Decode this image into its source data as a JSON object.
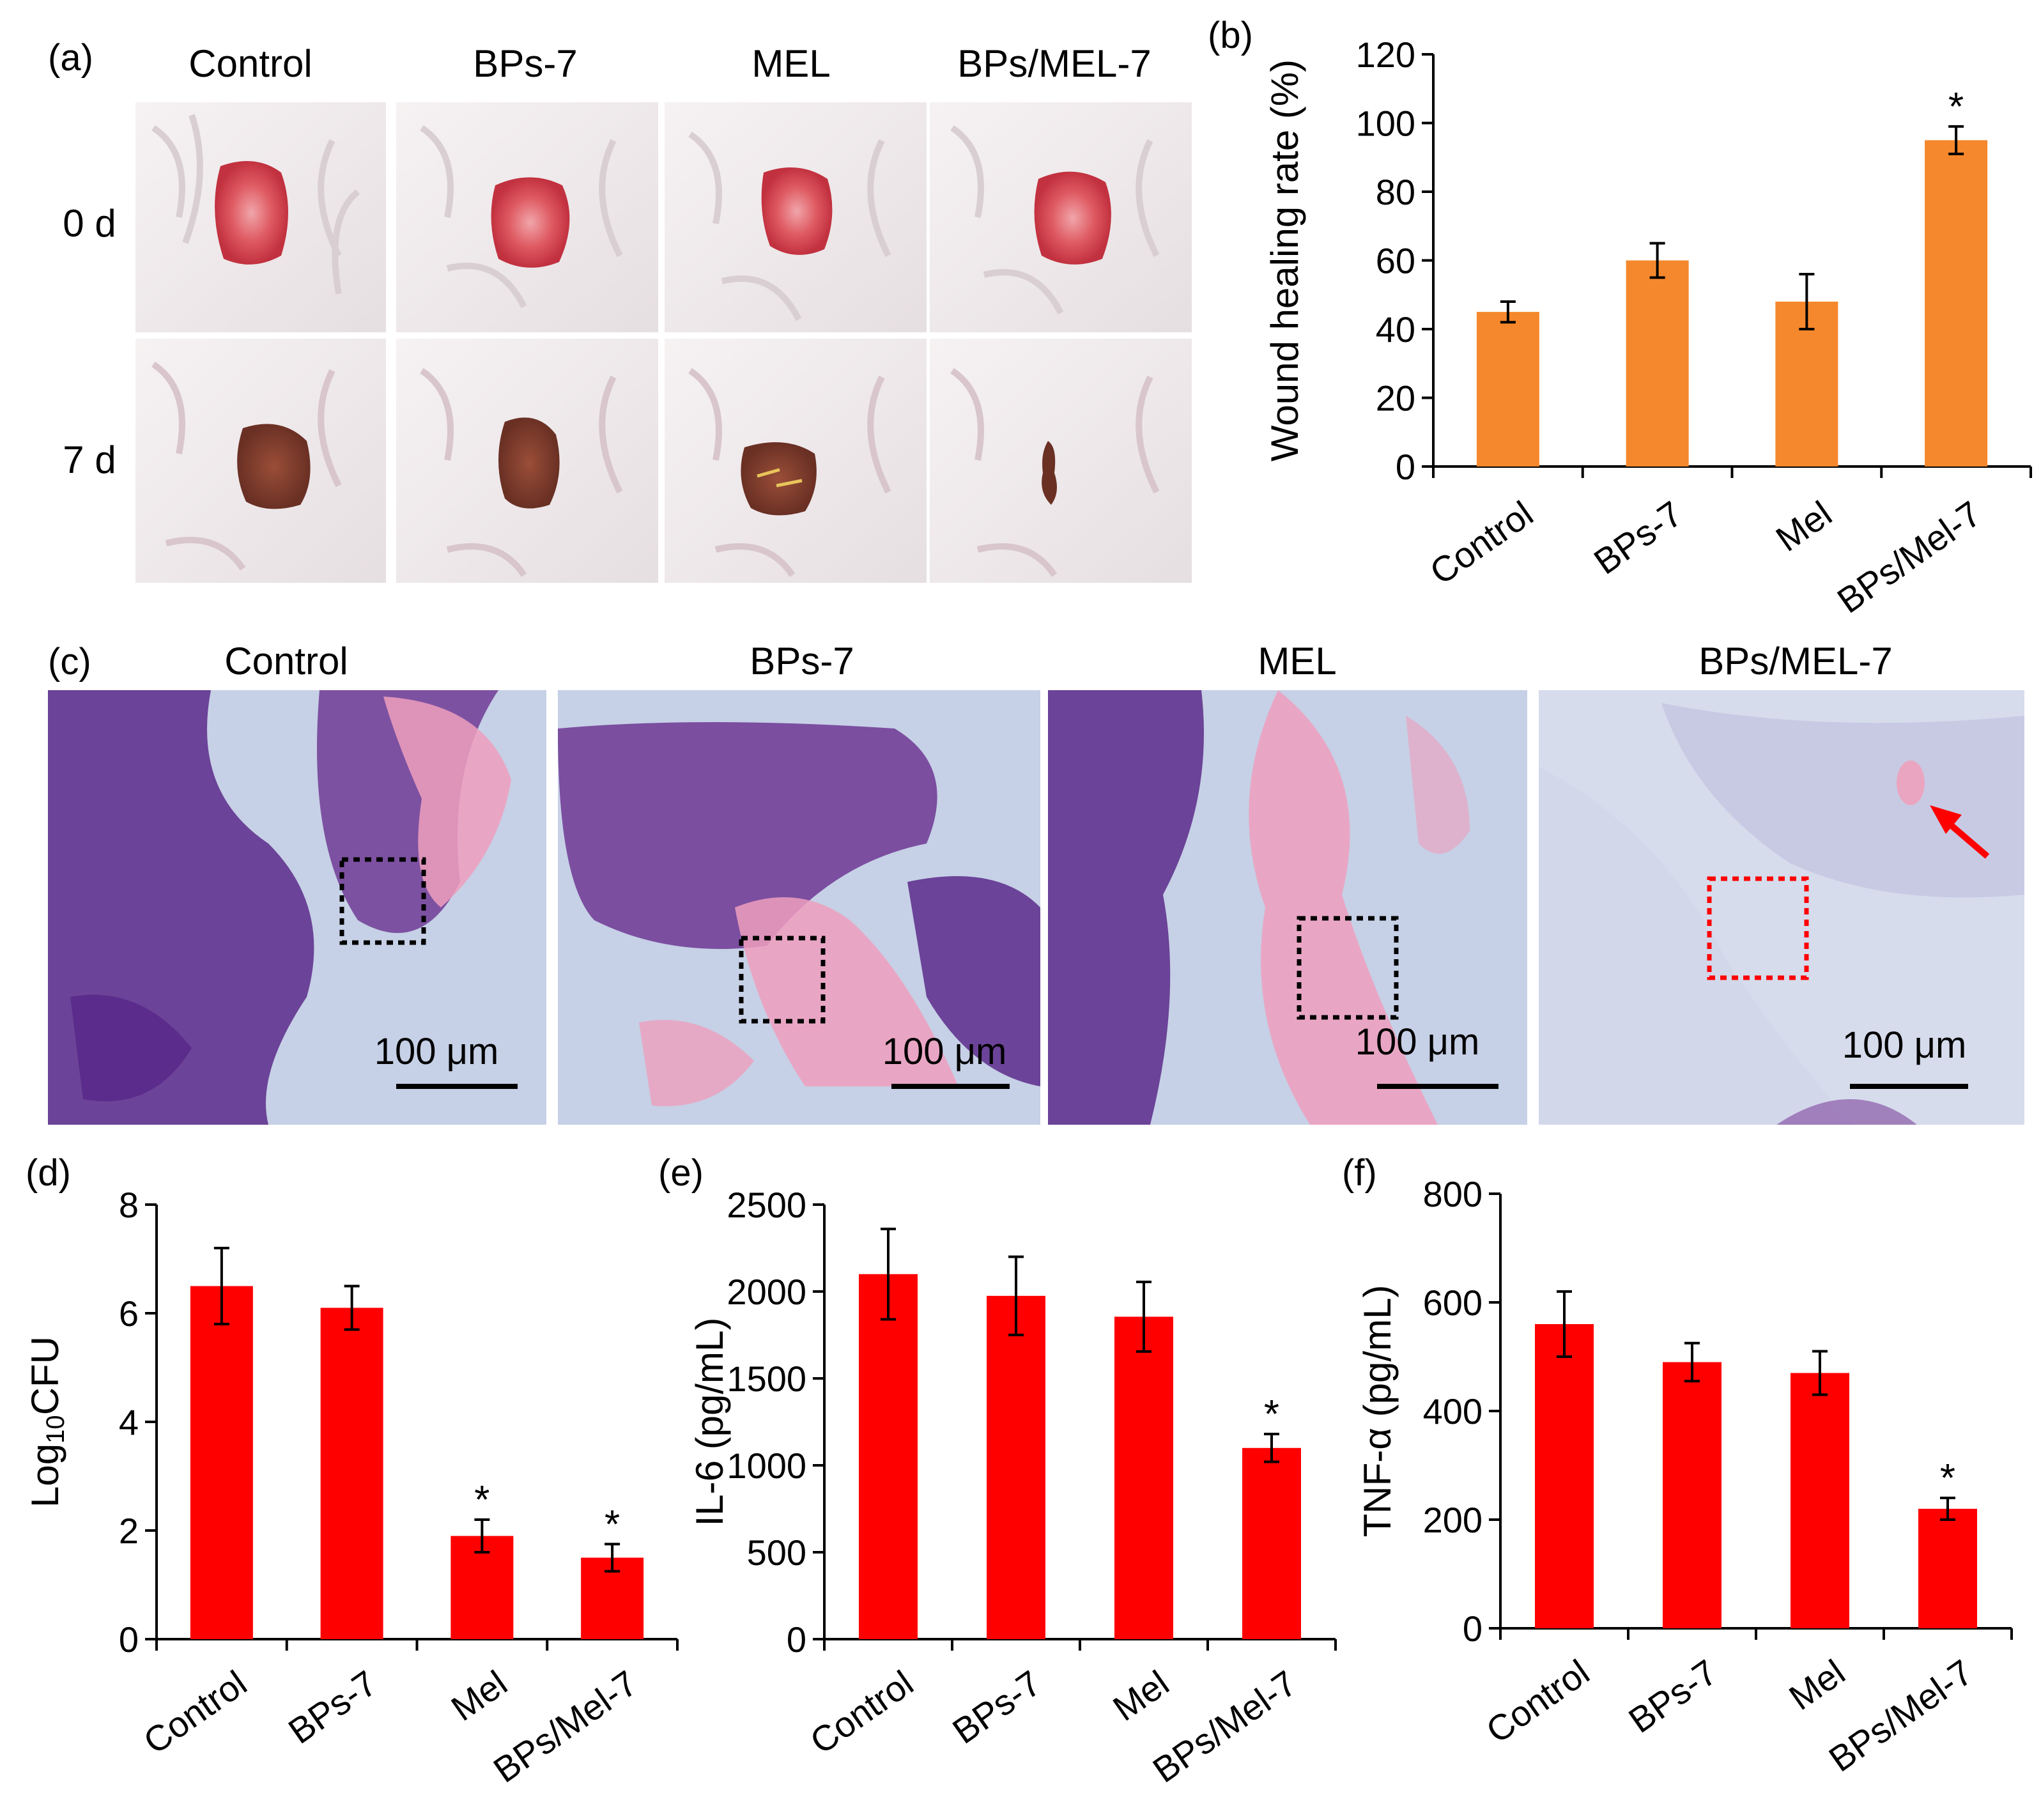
{
  "colors": {
    "orange_bar": "#f5882c",
    "red_bar": "#ff0000",
    "skin": "#ede8ec",
    "wound_fresh": "#d8464f",
    "wound_scab": "#7a3d2c",
    "tissue_bg": "#c8d0e6",
    "hematoxylin": "#5a2a8a",
    "eosin": "#ee9fbd",
    "box_black": "#000000",
    "box_red": "#ff0000",
    "arrow_red": "#ff0000"
  },
  "panel_a": {
    "label": "(a)",
    "columns": [
      "Control",
      "BPs-7",
      "MEL",
      "BPs/MEL-7"
    ],
    "rows": [
      "0 d",
      "7 d"
    ]
  },
  "panel_c": {
    "label": "(c)",
    "titles": [
      "Control",
      "BPs-7",
      "MEL",
      "BPs/MEL-7"
    ],
    "scale_bar": "100 μm"
  },
  "chart_data": [
    {
      "panel": "(b)",
      "type": "bar",
      "categories": [
        "Control",
        "BPs-7",
        "Mel",
        "BPs/Mel-7"
      ],
      "values": [
        45,
        60,
        48,
        95
      ],
      "errors": [
        3,
        5,
        8,
        4
      ],
      "significance": [
        "",
        "",
        "",
        "*"
      ],
      "ylabel": "Wound healing rate (%)",
      "ylim": [
        0,
        120
      ],
      "yticks": [
        "0",
        "20",
        "40",
        "60",
        "80",
        "100",
        "120"
      ],
      "color": "orange"
    },
    {
      "panel": "(d)",
      "type": "bar",
      "categories": [
        "Control",
        "BPs-7",
        "Mel",
        "BPs/Mel-7"
      ],
      "values": [
        6.5,
        6.1,
        1.9,
        1.5
      ],
      "errors": [
        0.7,
        0.4,
        0.3,
        0.25
      ],
      "significance": [
        "",
        "",
        "*",
        "*"
      ],
      "ylabel_main": "Log",
      "ylabel_sub": "10",
      "ylabel_tail": "CFU",
      "ylim": [
        0,
        8
      ],
      "yticks": [
        "0",
        "2",
        "4",
        "6",
        "8"
      ],
      "color": "red"
    },
    {
      "panel": "(e)",
      "type": "bar",
      "categories": [
        "Control",
        "BPs-7",
        "Mel",
        "BPs/Mel-7"
      ],
      "values": [
        2100,
        1975,
        1855,
        1100
      ],
      "errors": [
        260,
        225,
        200,
        80
      ],
      "significance": [
        "",
        "",
        "",
        "*"
      ],
      "ylabel": "IL-6 (pg/mL)",
      "ylim": [
        0,
        2500
      ],
      "yticks": [
        "0",
        "500",
        "1000",
        "1500",
        "2000",
        "2500"
      ],
      "color": "red"
    },
    {
      "panel": "(f)",
      "type": "bar",
      "categories": [
        "Control",
        "BPs-7",
        "Mel",
        "BPs/Mel-7"
      ],
      "values": [
        560,
        490,
        470,
        220
      ],
      "errors": [
        60,
        35,
        40,
        20
      ],
      "significance": [
        "",
        "",
        "",
        "*"
      ],
      "ylabel": "TNF-α (pg/mL)",
      "ylim": [
        0,
        800
      ],
      "yticks": [
        "0",
        "200",
        "400",
        "600",
        "800"
      ],
      "color": "red"
    }
  ]
}
